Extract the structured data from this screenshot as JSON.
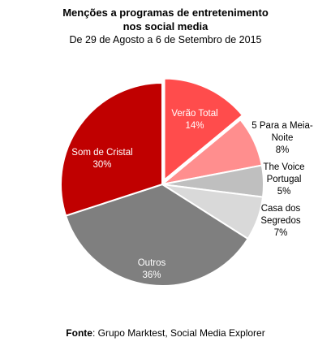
{
  "title": {
    "line1": "Menções a programas de entretenimento",
    "line2": "nos social media",
    "line3": "De 29 de Agosto a 6 de Setembro de 2015"
  },
  "source": {
    "label": "Fonte",
    "text": ": Grupo Marktest, Social Media Explorer"
  },
  "chart_data": {
    "type": "pie",
    "title": "Menções a programas de entretenimento nos social media",
    "subtitle": "De 29 de Agosto a 6 de Setembro de 2015",
    "legend": "none",
    "slices": [
      {
        "name": "Verão Total",
        "label_lines": [
          "Verão Total",
          "14%"
        ],
        "value": 14,
        "color": "#ff4c4c",
        "label_inside": true
      },
      {
        "name": "5 Para a Meia-Noite",
        "label_lines": [
          "5 Para a Meia-",
          "Noite",
          "8%"
        ],
        "value": 8,
        "color": "#ff8e8e",
        "label_inside": false
      },
      {
        "name": "The Voice Portugal",
        "label_lines": [
          "The Voice",
          "Portugal",
          "5%"
        ],
        "value": 5,
        "color": "#bfbfbf",
        "label_inside": false
      },
      {
        "name": "Casa dos Segredos",
        "label_lines": [
          "Casa dos",
          "Segredos",
          "7%"
        ],
        "value": 7,
        "color": "#d9d9d9",
        "label_inside": false
      },
      {
        "name": "Outros",
        "label_lines": [
          "Outros",
          "36%"
        ],
        "value": 36,
        "color": "#7f7f7f",
        "label_inside": true
      },
      {
        "name": "Som de Cristal",
        "label_lines": [
          "Som de Cristal",
          "30%"
        ],
        "value": 30,
        "color": "#c00000",
        "label_inside": true
      }
    ]
  }
}
